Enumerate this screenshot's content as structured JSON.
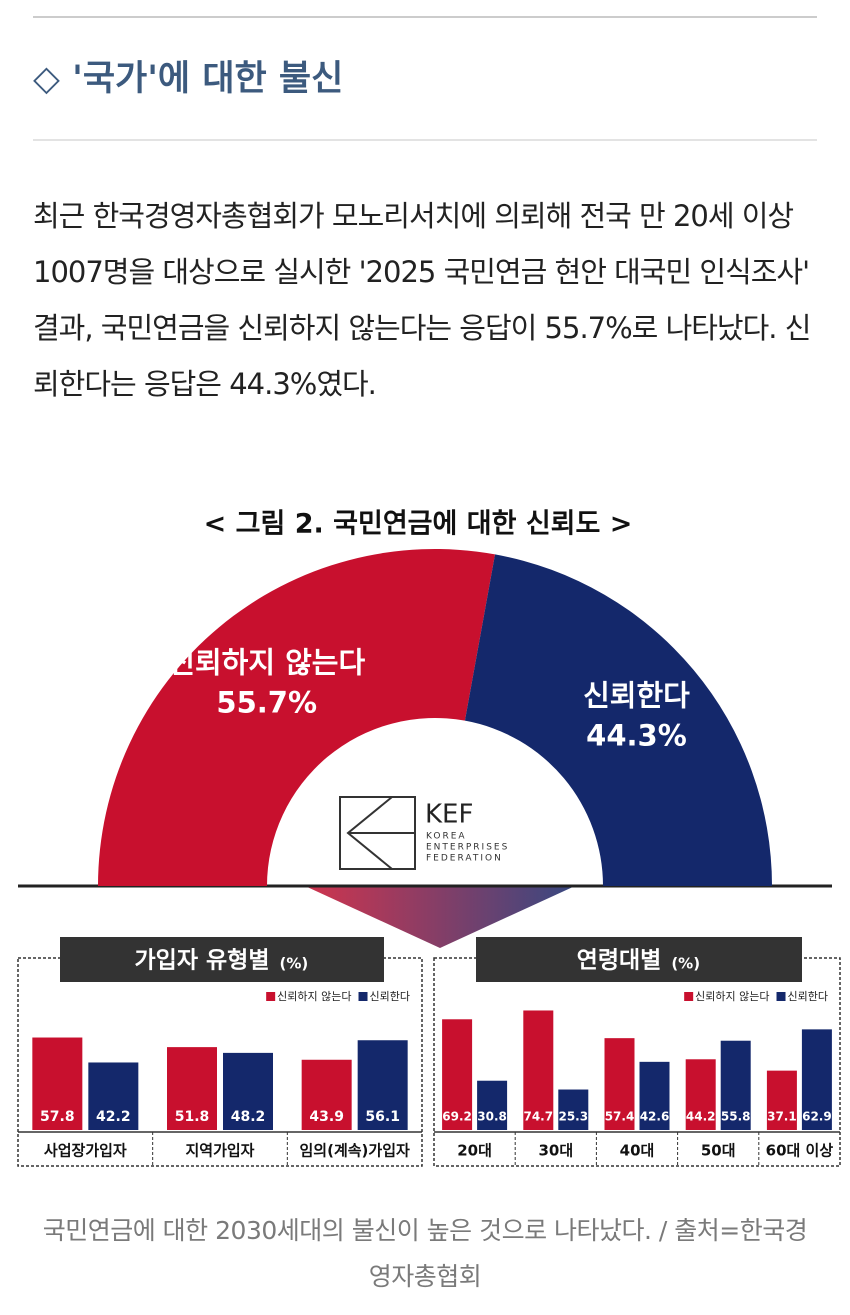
{
  "header": {
    "title": "◇ '국가'에 대한 불신"
  },
  "body": {
    "paragraph": "최근 한국경영자총협회가 모노리서치에 의뢰해 전국 만 20세 이상 1007명을 대상으로 실시한 '2025 국민연금 현안 대국민 인식조사' 결과, 국민연금을 신뢰하지 않는다는 응답이 55.7%로 나타났다. 신뢰한다는 응답은 44.3%였다."
  },
  "figure": {
    "title": "< 그림 2. 국민연금에 대한 신뢰도 >",
    "logo": {
      "name": "KEF",
      "lines": [
        "KOREA",
        "ENTERPRISES",
        "FEDERATION"
      ]
    }
  },
  "chart_data": [
    {
      "type": "pie",
      "categories": [
        "신뢰하지 않는다",
        "신뢰한다"
      ],
      "values": [
        55.7,
        44.3
      ],
      "value_labels": [
        "55.7%",
        "44.3%"
      ],
      "colors": [
        "#c8102e",
        "#14286b"
      ]
    },
    {
      "type": "bar",
      "title": "가입자 유형별",
      "unit": "(%)",
      "categories": [
        "사업장가입자",
        "지역가입자",
        "임의(계속)가입자"
      ],
      "series": [
        {
          "name": "신뢰하지 않는다",
          "color": "#c8102e",
          "values": [
            57.8,
            51.8,
            43.9
          ]
        },
        {
          "name": "신뢰한다",
          "color": "#14286b",
          "values": [
            42.2,
            48.2,
            56.1
          ]
        }
      ]
    },
    {
      "type": "bar",
      "title": "연령대별",
      "unit": "(%)",
      "categories": [
        "20대",
        "30대",
        "40대",
        "50대",
        "60대 이상"
      ],
      "series": [
        {
          "name": "신뢰하지 않는다",
          "color": "#c8102e",
          "values": [
            69.2,
            74.7,
            57.4,
            44.2,
            37.1
          ]
        },
        {
          "name": "신뢰한다",
          "color": "#14286b",
          "values": [
            30.8,
            25.3,
            42.6,
            55.8,
            62.9
          ]
        }
      ]
    }
  ],
  "caption": "국민연금에 대한 2030세대의 불신이 높은 것으로 나타났다. / 출처=한국경영자총협회"
}
